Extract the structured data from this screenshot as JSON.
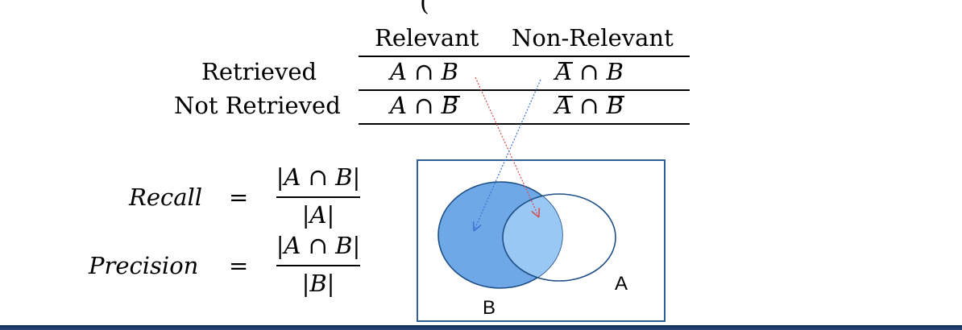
{
  "top_fragment": "(",
  "table": {
    "columns": [
      "Relevant",
      "Non-Relevant"
    ],
    "rows": [
      {
        "label": "Retrieved",
        "cells": [
          "A ∩ B",
          "A ∩ B"
        ]
      },
      {
        "label": "Not Retrieved",
        "cells": [
          "A ∩ B",
          "A ∩ B"
        ]
      }
    ]
  },
  "formulas": {
    "recall": {
      "label": "Recall",
      "equals": "=",
      "numerator": "|A ∩ B|",
      "denominator": "|A|"
    },
    "precision": {
      "label": "Precision",
      "equals": "=",
      "numerator": "|A ∩ B|",
      "denominator": "|B|"
    }
  },
  "venn": {
    "label_a": "A",
    "label_b": "B",
    "colors": {
      "frame": "#2f5f9a",
      "circle_b_fill": "#6fa8e6",
      "intersection_fill": "#99c8f4",
      "outline": "#1f4f86",
      "arrow_blue": "#3a6fd8",
      "arrow_red": "#d84a4a"
    }
  }
}
